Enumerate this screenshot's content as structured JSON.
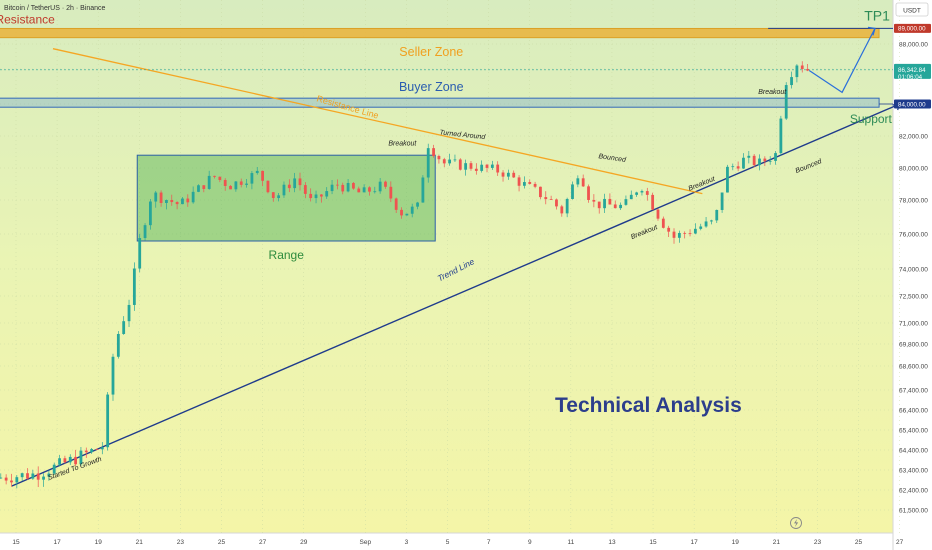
{
  "header": {
    "symbol": "Bitcoin / TetherUS · 2h · Binance"
  },
  "currency_badge": "USDT",
  "colors": {
    "up": "#26a69a",
    "down": "#ef5350",
    "trend_line": "#1f3b8c",
    "resistance_line": "#f5a623",
    "seller_zone": "#e9b23b",
    "buyer_zone": "#4a90d9",
    "range_box": "#4caf50",
    "price_tag": "#26a69a",
    "target": "#c0392b"
  },
  "chart_data": {
    "type": "candlestick",
    "title": "Technical Analysis",
    "ylim": [
      61000,
      89800
    ],
    "y_ticks": [
      "88,000.00",
      "86,400.00",
      "84,000.00",
      "82,000.00",
      "80,000.00",
      "78,000.00",
      "76,000.00",
      "74,000.00",
      "72,500.00",
      "71,000.00",
      "69,800.00",
      "68,600.00",
      "67,400.00",
      "66,400.00",
      "65,400.00",
      "64,400.00",
      "63,400.00",
      "62,400.00",
      "61,500.00"
    ],
    "x_ticks": [
      {
        "label": "15",
        "day": 15
      },
      {
        "label": "17",
        "day": 17
      },
      {
        "label": "19",
        "day": 19
      },
      {
        "label": "21",
        "day": 21
      },
      {
        "label": "23",
        "day": 23
      },
      {
        "label": "25",
        "day": 25
      },
      {
        "label": "27",
        "day": 27
      },
      {
        "label": "29",
        "day": 29
      },
      {
        "label": "Sep",
        "day": 32
      },
      {
        "label": "3",
        "day": 34
      },
      {
        "label": "5",
        "day": 36
      },
      {
        "label": "7",
        "day": 38
      },
      {
        "label": "9",
        "day": 40
      },
      {
        "label": "11",
        "day": 42
      },
      {
        "label": "13",
        "day": 44
      },
      {
        "label": "15",
        "day": 46
      },
      {
        "label": "17",
        "day": 48
      },
      {
        "label": "19",
        "day": 50
      },
      {
        "label": "21",
        "day": 52
      },
      {
        "label": "23",
        "day": 54
      },
      {
        "label": "25",
        "day": 56
      },
      {
        "label": "27",
        "day": 58
      }
    ],
    "price_path": [
      [
        14.0,
        63000
      ],
      [
        16.0,
        63200
      ],
      [
        17.5,
        63800
      ],
      [
        18.6,
        64300
      ],
      [
        19.2,
        64600
      ],
      [
        19.8,
        69800
      ],
      [
        20.6,
        72500
      ],
      [
        21.0,
        75500
      ],
      [
        21.6,
        78400
      ],
      [
        23.0,
        77700
      ],
      [
        24.6,
        79500
      ],
      [
        25.4,
        78900
      ],
      [
        26.8,
        79700
      ],
      [
        27.6,
        78100
      ],
      [
        28.6,
        79400
      ],
      [
        29.4,
        77800
      ],
      [
        30.6,
        79000
      ],
      [
        31.8,
        78400
      ],
      [
        32.8,
        78900
      ],
      [
        33.8,
        77200
      ],
      [
        34.6,
        77600
      ],
      [
        35.0,
        81600
      ],
      [
        35.8,
        80300
      ],
      [
        37.2,
        80100
      ],
      [
        38.6,
        79800
      ],
      [
        39.8,
        78900
      ],
      [
        41.0,
        78000
      ],
      [
        41.6,
        77300
      ],
      [
        42.4,
        79900
      ],
      [
        43.0,
        77800
      ],
      [
        44.6,
        77600
      ],
      [
        45.4,
        79000
      ],
      [
        46.4,
        76800
      ],
      [
        47.0,
        75800
      ],
      [
        48.2,
        76400
      ],
      [
        49.0,
        76700
      ],
      [
        49.6,
        79900
      ],
      [
        50.4,
        80500
      ],
      [
        51.2,
        80300
      ],
      [
        52.0,
        80900
      ],
      [
        52.4,
        85400
      ],
      [
        53.0,
        86800
      ],
      [
        53.6,
        86300
      ]
    ],
    "current_price": "86,342.84",
    "countdown": "01:06:04",
    "target_price": "89,000.00",
    "support_price": "84,000.00",
    "zones": {
      "seller_zone": {
        "label": "Seller Zone",
        "y_range": [
          88400,
          89000
        ],
        "x_range": [
          14.0,
          57.0
        ]
      },
      "buyer_zone": {
        "label": "Buyer Zone",
        "y_range": [
          83800,
          84400
        ],
        "x_range": [
          14.0,
          57.0
        ]
      },
      "range": {
        "label": "Range",
        "y_range": [
          75600,
          80800
        ],
        "x_range": [
          20.9,
          35.4
        ]
      }
    },
    "trend_line": {
      "label": "Trend Line",
      "points": [
        [
          14.8,
          62600
        ],
        [
          58.0,
          84000
        ]
      ]
    },
    "resistance_line": {
      "label": "Resistance Line",
      "points": [
        [
          16.8,
          87700
        ],
        [
          48.4,
          78400
        ]
      ]
    },
    "projection": {
      "points": [
        [
          53.6,
          86300
        ],
        [
          55.2,
          84800
        ],
        [
          56.8,
          89000
        ]
      ]
    },
    "annotations": [
      {
        "text": "Resistance",
        "x": 14.0,
        "y": 89300
      },
      {
        "text": "TP1",
        "x": 56.9,
        "y": 89500
      },
      {
        "text": "Support",
        "x": 56.6,
        "y": 82800
      },
      {
        "text": "Breakout",
        "x": 33.8,
        "y": 81400
      },
      {
        "text": "Turned Around",
        "x": 35.6,
        "y": 82100
      },
      {
        "text": "Bounced",
        "x": 44.0,
        "y": 80500
      },
      {
        "text": "Breakout",
        "x": 48.4,
        "y": 78900
      },
      {
        "text": "Breakout",
        "x": 45.6,
        "y": 76000
      },
      {
        "text": "Breakout",
        "x": 51.8,
        "y": 84700
      },
      {
        "text": "Bounced",
        "x": 53.6,
        "y": 80000
      },
      {
        "text": "Started To Growth",
        "x": 16.6,
        "y": 62900
      }
    ]
  }
}
